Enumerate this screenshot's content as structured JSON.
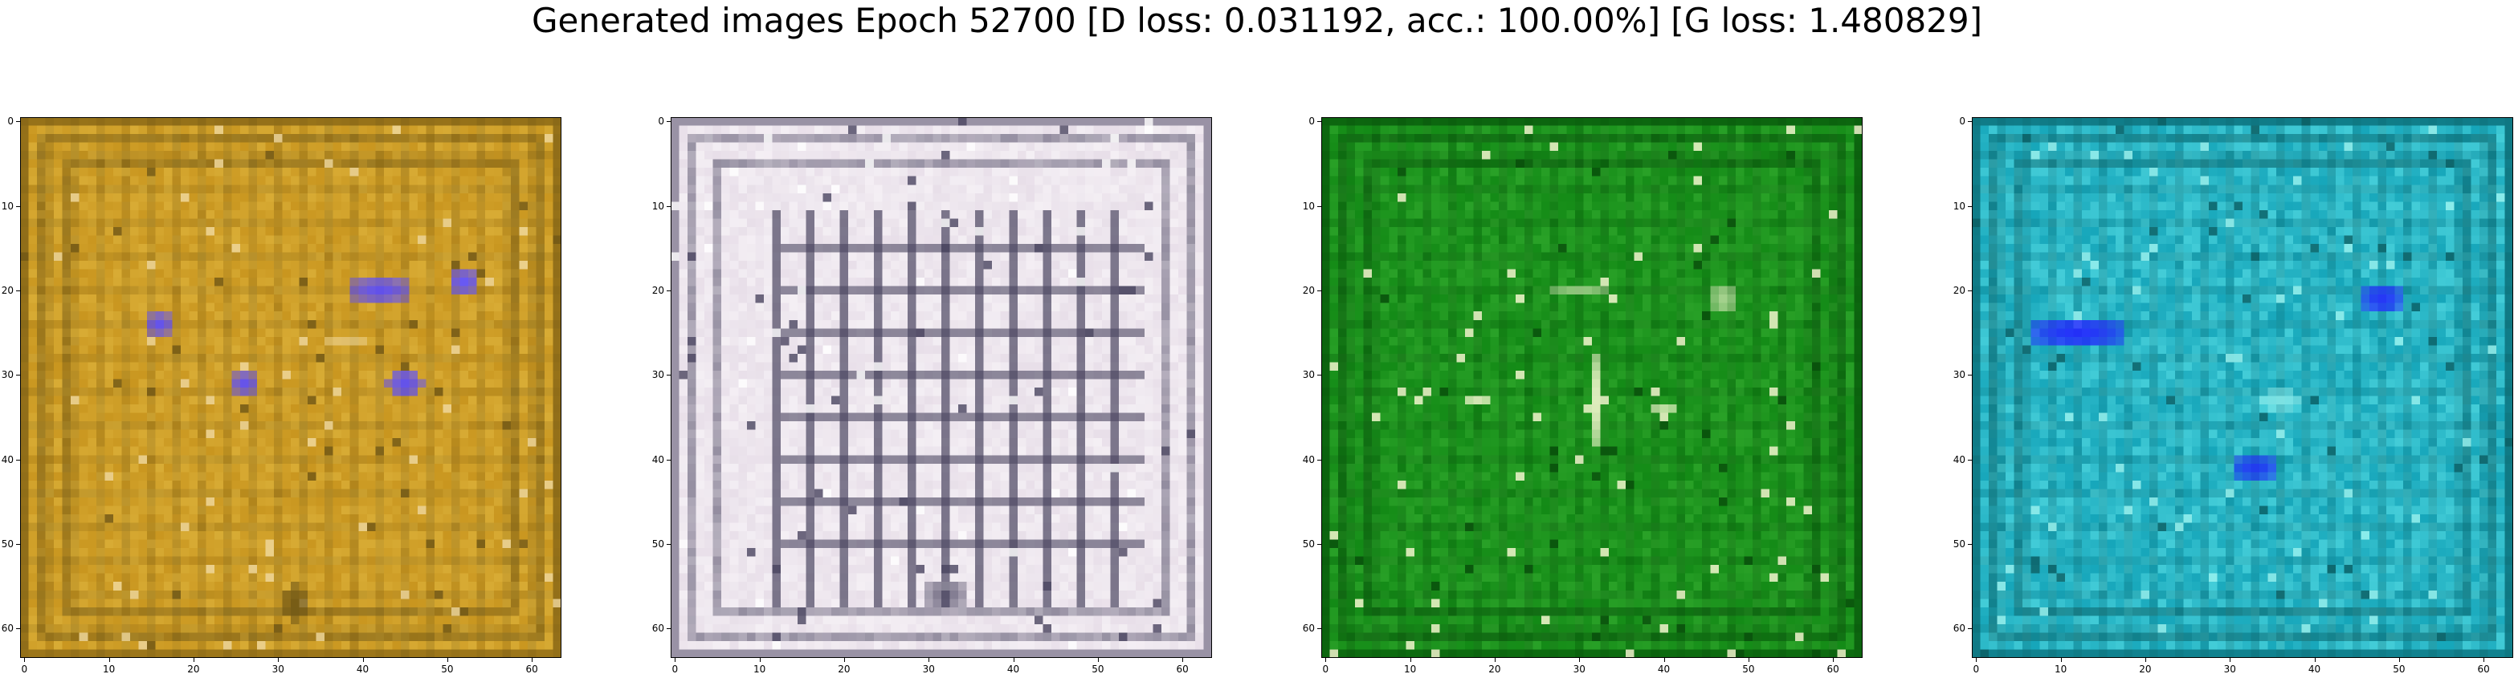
{
  "figure": {
    "title": "Generated images Epoch 52700 [D loss: 0.031192, acc.: 100.00%] [G loss: 1.480829]"
  },
  "axes": {
    "y_ticks": [
      "0",
      "10",
      "20",
      "30",
      "40",
      "50",
      "60"
    ],
    "x_ticks": [
      "0",
      "10",
      "20",
      "30",
      "40",
      "50",
      "60"
    ],
    "extent": [
      -0.5,
      63.5
    ]
  },
  "panels": [
    {
      "name": "orange-generated-image",
      "palette": {
        "base": "#c9961f",
        "light": "#dcb13a",
        "dark": "#6f5615",
        "accent": "#5a4cff",
        "highlight": "#f0d9a0"
      }
    },
    {
      "name": "white-generated-image",
      "palette": {
        "base": "#e8dfe9",
        "light": "#f7f3f7",
        "dark": "#4a4560",
        "accent": "#2a2f7a",
        "highlight": "#ffffff"
      }
    },
    {
      "name": "green-generated-image",
      "palette": {
        "base": "#138a16",
        "light": "#2fa72c",
        "dark": "#074b0a",
        "accent": "#e3f7c9",
        "highlight": "#fffbd8"
      }
    },
    {
      "name": "teal-generated-image",
      "palette": {
        "base": "#16a6ba",
        "light": "#4ed6df",
        "dark": "#0b5e63",
        "accent": "#2424ff",
        "highlight": "#9ef5f1"
      }
    }
  ]
}
